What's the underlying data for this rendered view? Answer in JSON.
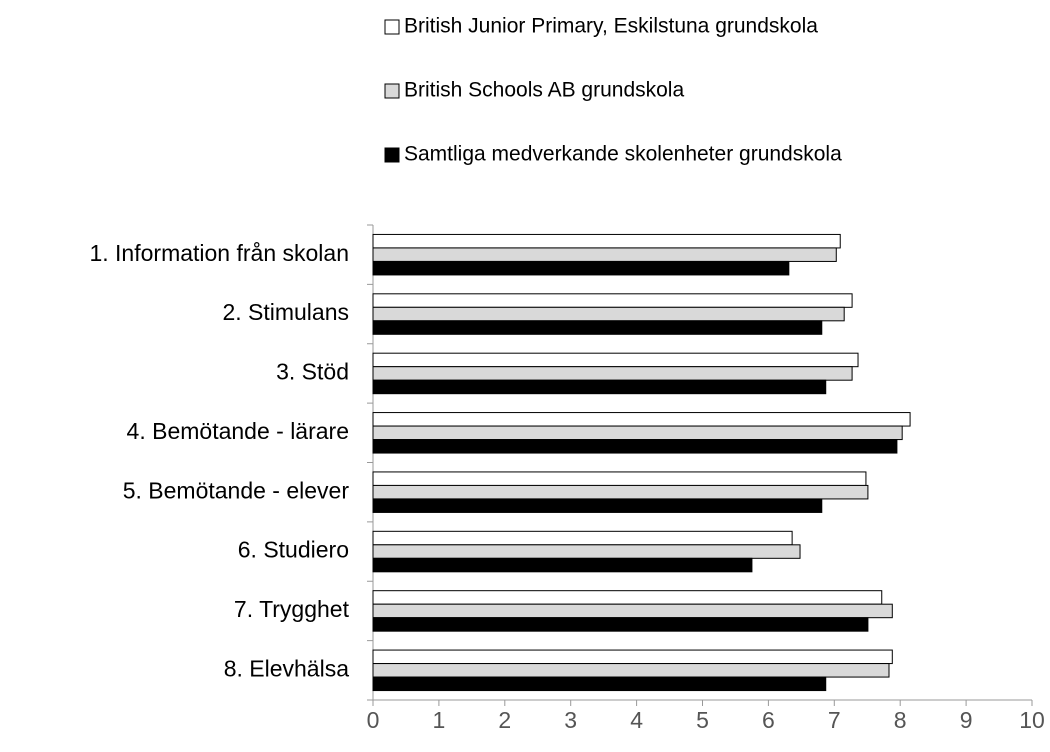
{
  "chart_data": {
    "type": "hbar",
    "categories": [
      "1. Information från skolan",
      "2. Stimulans",
      "3. Stöd",
      "4. Bemötande - lärare",
      "5. Bemötande - elever",
      "6. Studiero",
      "7. Trygghet",
      "8. Elevhälsa"
    ],
    "series": [
      {
        "name": "British Junior Primary, Eskilstuna grundskola",
        "color": "#ffffff",
        "values": [
          7.09,
          7.27,
          7.36,
          8.15,
          7.48,
          6.36,
          7.72,
          7.88
        ]
      },
      {
        "name": "British Schools AB grundskola",
        "color": "#d9d9d9",
        "values": [
          7.03,
          7.15,
          7.27,
          8.03,
          7.51,
          6.48,
          7.88,
          7.83
        ]
      },
      {
        "name": "Samtliga medverkande skolenheter grundskola",
        "color": "#000000",
        "values": [
          6.31,
          6.81,
          6.87,
          7.95,
          6.81,
          5.75,
          7.51,
          6.87
        ]
      }
    ],
    "xlim": [
      0,
      10
    ],
    "xticks": [
      0,
      1,
      2,
      3,
      4,
      5,
      6,
      7,
      8,
      9,
      10
    ],
    "grid": false,
    "legend": "top"
  }
}
